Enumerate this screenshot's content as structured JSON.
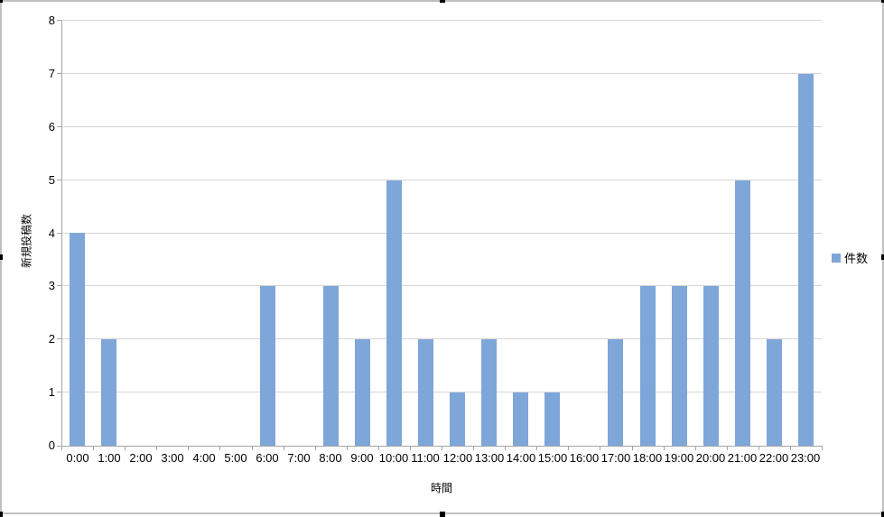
{
  "chart_data": {
    "type": "bar",
    "categories": [
      "0:00",
      "1:00",
      "2:00",
      "3:00",
      "4:00",
      "5:00",
      "6:00",
      "7:00",
      "8:00",
      "9:00",
      "10:00",
      "11:00",
      "12:00",
      "13:00",
      "14:00",
      "15:00",
      "16:00",
      "17:00",
      "18:00",
      "19:00",
      "20:00",
      "21:00",
      "22:00",
      "23:00"
    ],
    "series": [
      {
        "name": "件数",
        "values": [
          4,
          2,
          0,
          0,
          0,
          0,
          3,
          0,
          3,
          2,
          5,
          2,
          1,
          2,
          1,
          1,
          0,
          2,
          3,
          3,
          3,
          5,
          2,
          7
        ]
      }
    ],
    "xlabel": "時間",
    "ylabel": "新規投稿数",
    "ylim": [
      0,
      8
    ],
    "ytick_step": 1,
    "grid": true,
    "legend_position": "right",
    "bar_color": "#7EA6D9",
    "gridline_color": "#D6D6D6",
    "axis_color": "#A6A6A6"
  },
  "frame": {
    "border_color": "#C0C0C0",
    "handle_color": "#000000",
    "background": "#FFFFFF"
  }
}
